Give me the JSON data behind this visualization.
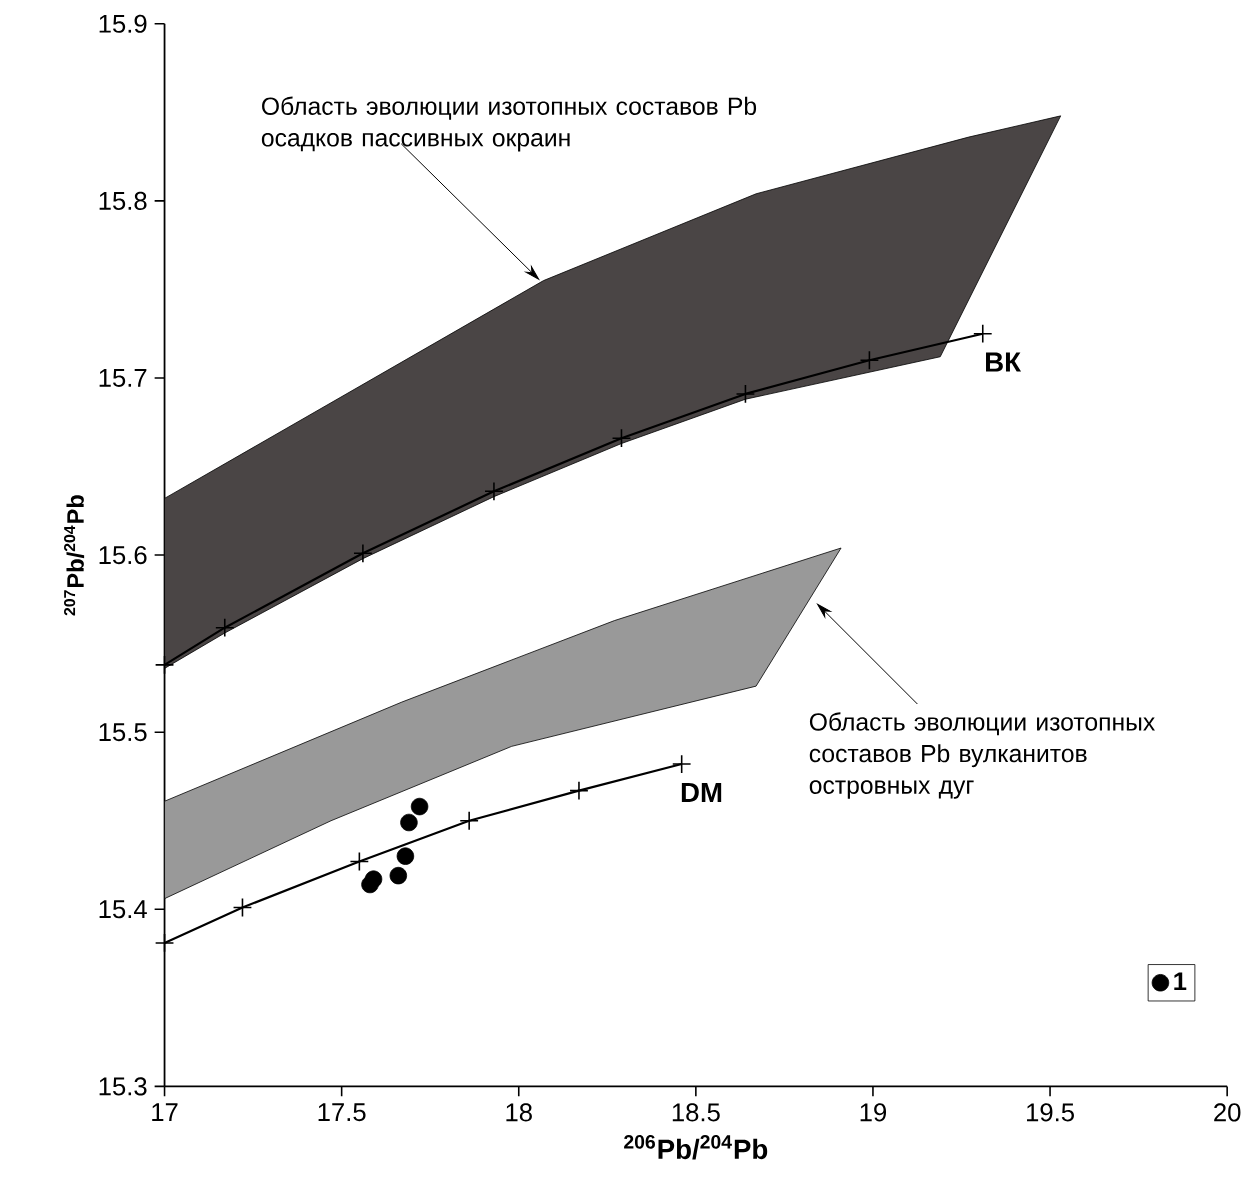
{
  "chart_data": {
    "type": "line",
    "xlabel": "$^{206}$Pb/$^{204}$Pb",
    "ylabel": "$^{207}$Pb/$^{204}$Pb",
    "xlim": [
      17,
      20
    ],
    "ylim": [
      15.3,
      15.9
    ],
    "xticks": [
      17,
      17.5,
      18,
      18.5,
      19,
      19.5,
      20
    ],
    "yticks": [
      15.3,
      15.4,
      15.5,
      15.6,
      15.7,
      15.8,
      15.9
    ],
    "legend": "bottom right",
    "series": [
      {
        "type": "area",
        "color": "#4a4545",
        "x": [
          17,
          17.47,
          18.07,
          18.67,
          19.27,
          19.53,
          19.19,
          18.64,
          18.29,
          17.93,
          17.56,
          17.17,
          17
        ],
        "values": [
          15.632,
          15.686,
          15.755,
          15.804,
          15.836,
          15.848,
          15.712,
          15.688,
          15.663,
          15.633,
          15.598,
          15.556,
          15.536
        ]
      },
      {
        "type": "area",
        "color": "#999999",
        "x": [
          17,
          17.67,
          18.27,
          18.91,
          18.67,
          17.98,
          17.47,
          17
        ],
        "values": [
          15.461,
          15.517,
          15.563,
          15.604,
          15.526,
          15.492,
          15.45,
          15.406
        ]
      },
      {
        "name": "ВК",
        "color": "#000000",
        "marker": "cross",
        "x": [
          17,
          17.17,
          17.56,
          17.93,
          18.29,
          18.64,
          18.99,
          19.31
        ],
        "values": [
          15.538,
          15.559,
          15.601,
          15.636,
          15.666,
          15.691,
          15.71,
          15.725
        ]
      },
      {
        "name": "DM",
        "color": "#000000",
        "marker": "cross",
        "x": [
          17,
          17.22,
          17.55,
          17.86,
          18.17,
          18.46
        ],
        "values": [
          15.381,
          15.401,
          15.427,
          15.45,
          15.467,
          15.482
        ]
      },
      {
        "type": "scatter",
        "name": "1",
        "color": "#000000",
        "marker": "circle",
        "x": [
          17.58,
          17.59,
          17.66,
          17.68,
          17.69,
          17.72
        ],
        "values": [
          15.414,
          15.417,
          15.419,
          15.43,
          15.449,
          15.458
        ]
      }
    ],
    "annotations": [
      {
        "text": "Область эволюции изотопных составов Pb осадков пассивных окраин",
        "x": 18.06,
        "y": 15.755
      },
      {
        "text": "Область эволюции изотопных составов Pb вулканитов островных дуг",
        "x": 18.84,
        "y": 15.573
      }
    ]
  }
}
